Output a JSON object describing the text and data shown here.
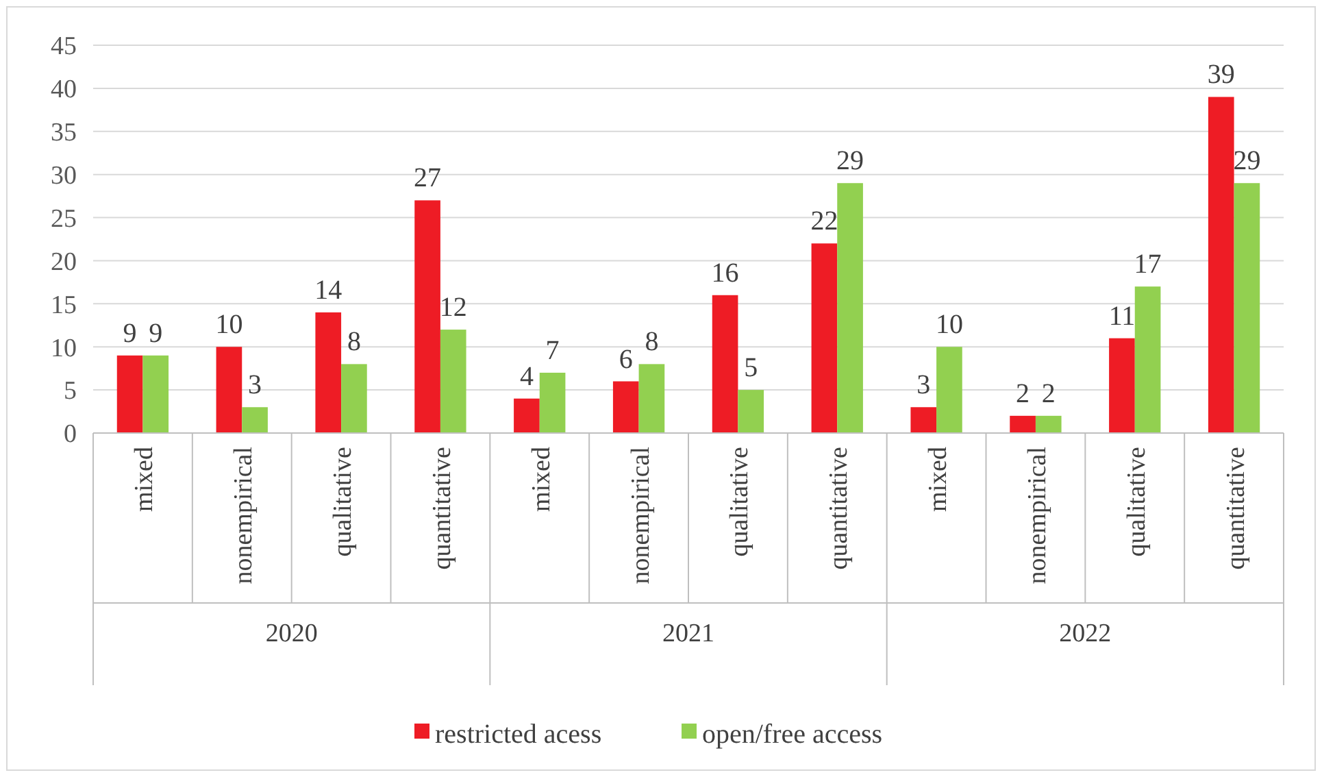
{
  "chart_data": {
    "type": "bar",
    "categories": [
      "mixed",
      "nonempirical",
      "qualitative",
      "quantitative",
      "mixed",
      "nonempirical",
      "qualitative",
      "quantitative",
      "mixed",
      "nonempirical",
      "qualitative",
      "quantitative"
    ],
    "series": [
      {
        "name": "restricted acess",
        "color": "#ee1c25",
        "values": [
          9,
          10,
          14,
          27,
          4,
          6,
          16,
          22,
          3,
          2,
          11,
          39
        ]
      },
      {
        "name": "open/free access",
        "color": "#92d050",
        "values": [
          9,
          3,
          8,
          12,
          7,
          8,
          5,
          29,
          10,
          2,
          17,
          29
        ]
      }
    ],
    "annotations": [
      "2020",
      "2021",
      "2022"
    ],
    "ylim": [
      0,
      45
    ],
    "yticks": [
      0,
      5,
      10,
      15,
      20,
      25,
      30,
      35,
      40,
      45
    ],
    "grid": "y",
    "legend": "bottom",
    "data_labels": true
  }
}
